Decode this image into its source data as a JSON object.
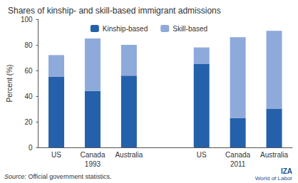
{
  "chart_data": {
    "type": "bar",
    "title": "Shares of kinship- and skill-based immigrant admissions",
    "stacked": true,
    "categories": [
      "US",
      "Canada",
      "Australia",
      null,
      "US",
      "Canada",
      "Australia"
    ],
    "series": [
      {
        "name": "Kinship-based",
        "color": "#2461aa",
        "values": [
          55,
          44,
          56,
          null,
          65,
          23,
          30
        ]
      },
      {
        "name": "Skill-based",
        "color": "#8eaadb",
        "values": [
          17,
          41,
          24,
          null,
          13,
          63,
          61
        ]
      }
    ],
    "y_label": "Percent (%)",
    "ylim": [
      0,
      100
    ],
    "yticks": [
      0,
      20,
      40,
      60,
      80,
      100
    ],
    "grid": false,
    "legend": "top",
    "annotations": [
      "1993",
      "2011"
    ],
    "source": "Source: Official government statistics.",
    "logo": [
      "IZA",
      "World of Labor"
    ]
  }
}
